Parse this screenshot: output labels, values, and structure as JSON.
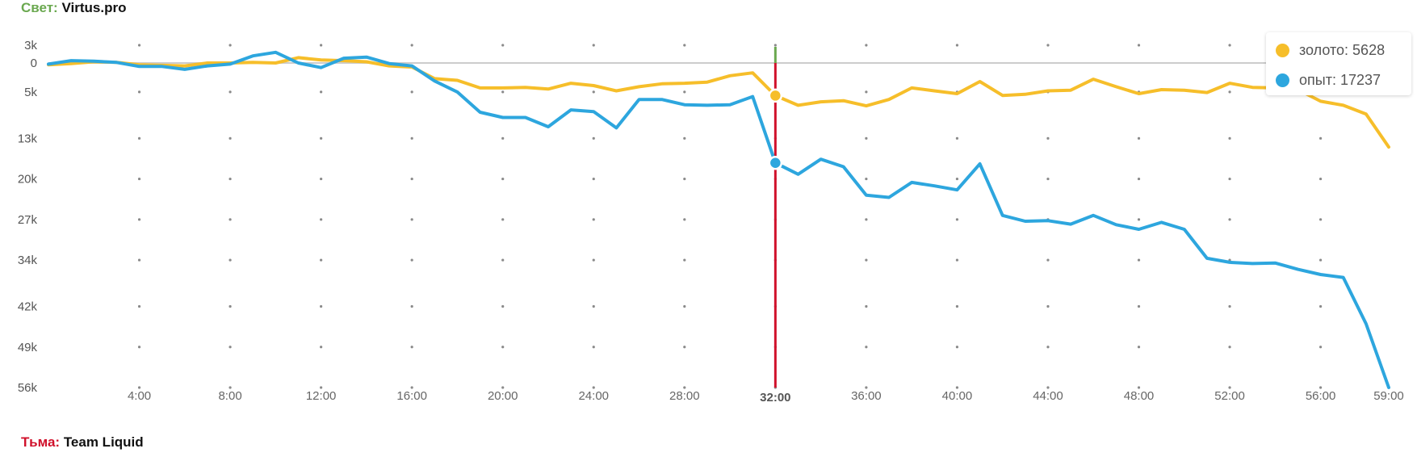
{
  "teams": {
    "radiant": {
      "side": "Свет:",
      "name": "Virtus.pro"
    },
    "dire": {
      "side": "Тьма:",
      "name": "Team Liquid"
    }
  },
  "tooltip": {
    "gold": {
      "label": "золото: 5628",
      "color": "#f6be2a"
    },
    "xp": {
      "label": "опыт: 17237",
      "color": "#2da6de"
    }
  },
  "colors": {
    "radiant": "#6aa84f",
    "dire": "#d0112b",
    "zero_line": "#cccccc",
    "gridpoint": "#8a8a8a"
  },
  "chart_data": {
    "type": "line",
    "title": "",
    "xlabel": "",
    "ylabel": "",
    "x_unit": "minutes",
    "x": [
      0,
      1,
      2,
      3,
      4,
      5,
      6,
      7,
      8,
      9,
      10,
      11,
      12,
      13,
      14,
      15,
      16,
      17,
      18,
      19,
      20,
      21,
      22,
      23,
      24,
      25,
      26,
      27,
      28,
      29,
      30,
      31,
      32,
      33,
      34,
      35,
      36,
      37,
      38,
      39,
      40,
      41,
      42,
      43,
      44,
      45,
      46,
      47,
      48,
      49,
      50,
      51,
      52,
      53,
      54,
      55,
      56,
      57,
      58,
      59
    ],
    "xlim": [
      0,
      59
    ],
    "x_ticks": [
      "4:00",
      "8:00",
      "12:00",
      "16:00",
      "20:00",
      "24:00",
      "28:00",
      "32:00",
      "36:00",
      "40:00",
      "44:00",
      "48:00",
      "52:00",
      "56:00",
      "59:00"
    ],
    "x_tick_values": [
      4,
      8,
      12,
      16,
      20,
      24,
      28,
      32,
      36,
      40,
      44,
      48,
      52,
      56,
      59
    ],
    "highlight_x": 32,
    "highlight_x_label": "32:00",
    "y_tick_labels": [
      "3k",
      "0",
      "5k",
      "13k",
      "20k",
      "27k",
      "34k",
      "42k",
      "49k",
      "56k"
    ],
    "y_tick_values": [
      3000,
      0,
      -5000,
      -13000,
      -20000,
      -27000,
      -34000,
      -42000,
      -49000,
      -56000
    ],
    "ylim": [
      -56000,
      3000
    ],
    "y_positive_side": "radiant",
    "y_negative_side": "dire",
    "series": [
      {
        "name": "золото",
        "color": "#f6be2a",
        "values": [
          -300,
          -100,
          200,
          100,
          -300,
          -400,
          -500,
          0,
          0,
          100,
          0,
          900,
          500,
          400,
          200,
          -500,
          -700,
          -2700,
          -3000,
          -4300,
          -4300,
          -4200,
          -4500,
          -3500,
          -3900,
          -4800,
          -4100,
          -3600,
          -3500,
          -3300,
          -2200,
          -1700,
          -5628,
          -7300,
          -6700,
          -6500,
          -7400,
          -6300,
          -4300,
          -4800,
          -5300,
          -3200,
          -5600,
          -5400,
          -4800,
          -4700,
          -2800,
          -4100,
          -5300,
          -4600,
          -4700,
          -5100,
          -3500,
          -4200,
          -4300,
          -4600,
          -6600,
          -7300,
          -8800,
          -14500
        ]
      },
      {
        "name": "опыт",
        "color": "#2da6de",
        "values": [
          -200,
          400,
          300,
          100,
          -600,
          -600,
          -1100,
          -500,
          -200,
          1200,
          1800,
          0,
          -800,
          800,
          1000,
          -100,
          -500,
          -3100,
          -5000,
          -8500,
          -9400,
          -9400,
          -11000,
          -8100,
          -8400,
          -11200,
          -6300,
          -6300,
          -7200,
          -7300,
          -7200,
          -5800,
          -17237,
          -19200,
          -16600,
          -17900,
          -22800,
          -23200,
          -20600,
          -21200,
          -21900,
          -17400,
          -26300,
          -27300,
          -27200,
          -27800,
          -26300,
          -27900,
          -28700,
          -27500,
          -28700,
          -33700,
          -34400,
          -34600,
          -34500,
          -35600,
          -36500,
          -37000,
          -45000,
          -56000
        ]
      }
    ],
    "markers": [
      {
        "series": "золото",
        "x": 32,
        "value": -5628
      },
      {
        "series": "опыт",
        "x": 32,
        "value": -17237
      }
    ],
    "grid": "dotted",
    "legend": "tooltip top-right"
  }
}
